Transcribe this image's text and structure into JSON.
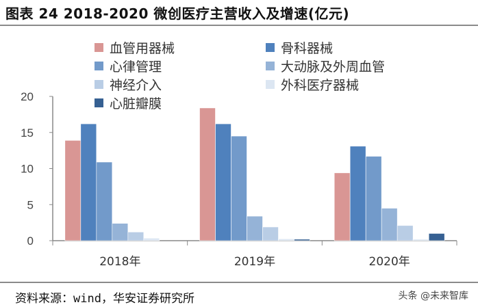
{
  "title": "图表 24 2018-2020 微创医疗主营收入及增速(亿元)",
  "source": "资料来源：wind，华安证券研究所",
  "watermark": "头条 @未来智库",
  "chart_data": {
    "type": "bar",
    "categories": [
      "2018年",
      "2019年",
      "2020年"
    ],
    "ylim": [
      0,
      20
    ],
    "yticks": [
      0,
      5,
      10,
      15,
      20
    ],
    "grid": false,
    "legend_position": "top",
    "series": [
      {
        "name": "血管用器械",
        "color": "#d99694",
        "values": [
          13.9,
          18.4,
          9.4
        ]
      },
      {
        "name": "骨科器械",
        "color": "#4f81bd",
        "values": [
          16.2,
          16.2,
          13.1
        ]
      },
      {
        "name": "心律管理",
        "color": "#729aca",
        "values": [
          10.9,
          14.5,
          11.7
        ]
      },
      {
        "name": "大动脉及外周血管",
        "color": "#95b3d7",
        "values": [
          2.4,
          3.4,
          4.5
        ]
      },
      {
        "name": "神经介入",
        "color": "#b9cde5",
        "values": [
          1.2,
          1.9,
          2.1
        ]
      },
      {
        "name": "外科医疗器械",
        "color": "#dce6f2",
        "values": [
          0.35,
          0.25,
          0.2
        ]
      },
      {
        "name": "心脏瓣膜",
        "color": "#366092",
        "values": [
          0,
          0.2,
          1.0
        ]
      }
    ]
  }
}
